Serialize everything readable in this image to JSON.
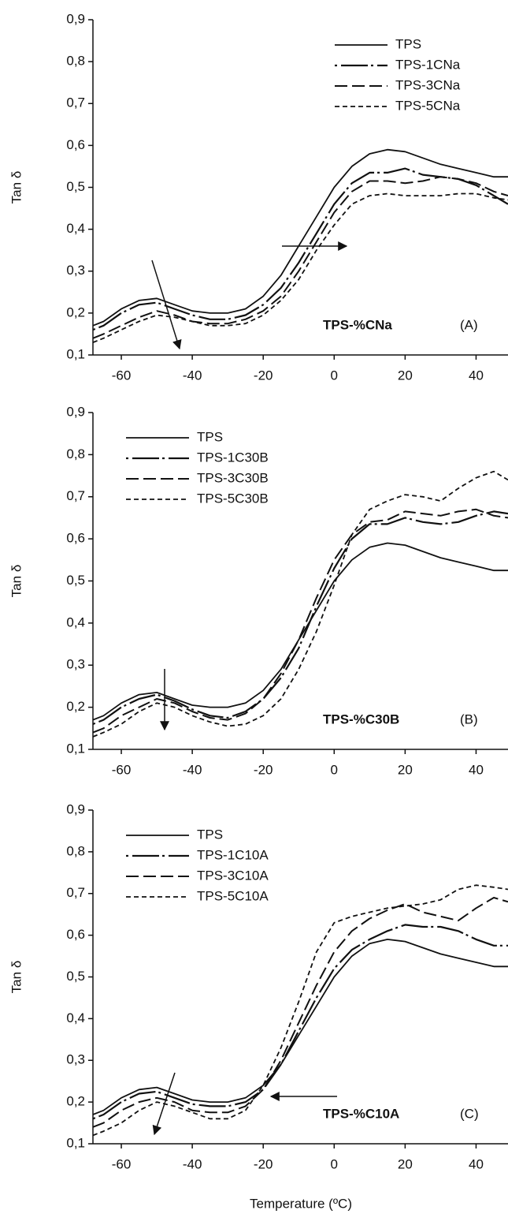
{
  "chart_data": [
    {
      "type": "line",
      "ylabel": "Tan δ",
      "annotation": "TPS-%CNa",
      "panel_label": "(A)",
      "legend_position": "upper right",
      "xlim": [
        -68,
        49
      ],
      "xticks": [
        -60,
        -40,
        -20,
        0,
        20,
        40
      ],
      "ylim": [
        0.1,
        0.9
      ],
      "yticks": [
        {
          "value": 0.1,
          "label": "0,1"
        },
        {
          "value": 0.2,
          "label": "0,2"
        },
        {
          "value": 0.3,
          "label": "0,3"
        },
        {
          "value": 0.4,
          "label": "0,4"
        },
        {
          "value": 0.5,
          "label": "0,5"
        },
        {
          "value": 0.6,
          "label": "0,6"
        },
        {
          "value": 0.7,
          "label": "0,7"
        },
        {
          "value": 0.8,
          "label": "0,8"
        },
        {
          "value": 0.9,
          "label": "0,9"
        }
      ],
      "x": [
        -68,
        -65,
        -60,
        -55,
        -50,
        -45,
        -40,
        -35,
        -30,
        -25,
        -20,
        -15,
        -10,
        -5,
        0,
        5,
        10,
        15,
        20,
        25,
        30,
        35,
        40,
        45,
        49
      ],
      "series": [
        {
          "name": "TPS",
          "color": "#111111",
          "dash": "solid",
          "values": [
            0.17,
            0.18,
            0.21,
            0.23,
            0.235,
            0.22,
            0.205,
            0.2,
            0.2,
            0.21,
            0.24,
            0.29,
            0.36,
            0.43,
            0.5,
            0.55,
            0.58,
            0.59,
            0.585,
            0.57,
            0.555,
            0.545,
            0.535,
            0.525,
            0.525
          ]
        },
        {
          "name": "TPS-1CNa",
          "color": "#111111",
          "dash": "dash-dot",
          "values": [
            0.16,
            0.17,
            0.2,
            0.22,
            0.225,
            0.21,
            0.195,
            0.185,
            0.185,
            0.195,
            0.22,
            0.26,
            0.32,
            0.39,
            0.46,
            0.51,
            0.535,
            0.535,
            0.545,
            0.53,
            0.525,
            0.52,
            0.505,
            0.48,
            0.46
          ]
        },
        {
          "name": "TPS-3CNa",
          "color": "#111111",
          "dash": "dashed",
          "values": [
            0.14,
            0.15,
            0.17,
            0.19,
            0.205,
            0.195,
            0.18,
            0.175,
            0.175,
            0.185,
            0.205,
            0.24,
            0.3,
            0.37,
            0.44,
            0.49,
            0.515,
            0.515,
            0.51,
            0.515,
            0.525,
            0.52,
            0.51,
            0.49,
            0.48
          ]
        },
        {
          "name": "TPS-5CNa",
          "color": "#111111",
          "dash": "short-dash",
          "values": [
            0.13,
            0.14,
            0.16,
            0.18,
            0.195,
            0.19,
            0.18,
            0.17,
            0.17,
            0.175,
            0.195,
            0.23,
            0.28,
            0.35,
            0.41,
            0.46,
            0.48,
            0.485,
            0.48,
            0.48,
            0.48,
            0.485,
            0.485,
            0.475,
            0.47
          ]
        }
      ]
    },
    {
      "type": "line",
      "ylabel": "Tan δ",
      "annotation": "TPS-%C30B",
      "panel_label": "(B)",
      "legend_position": "upper left",
      "xlim": [
        -68,
        49
      ],
      "xticks": [
        -60,
        -40,
        -20,
        0,
        20,
        40
      ],
      "ylim": [
        0.1,
        0.9
      ],
      "yticks": [
        {
          "value": 0.1,
          "label": "0,1"
        },
        {
          "value": 0.2,
          "label": "0,2"
        },
        {
          "value": 0.3,
          "label": "0,3"
        },
        {
          "value": 0.4,
          "label": "0,4"
        },
        {
          "value": 0.5,
          "label": "0,5"
        },
        {
          "value": 0.6,
          "label": "0,6"
        },
        {
          "value": 0.7,
          "label": "0,7"
        },
        {
          "value": 0.8,
          "label": "0,8"
        },
        {
          "value": 0.9,
          "label": "0,9"
        }
      ],
      "x": [
        -68,
        -65,
        -60,
        -55,
        -50,
        -45,
        -40,
        -35,
        -30,
        -25,
        -20,
        -15,
        -10,
        -5,
        0,
        5,
        10,
        15,
        20,
        25,
        30,
        35,
        40,
        45,
        49
      ],
      "series": [
        {
          "name": "TPS",
          "color": "#111111",
          "dash": "solid",
          "values": [
            0.17,
            0.18,
            0.21,
            0.23,
            0.235,
            0.22,
            0.205,
            0.2,
            0.2,
            0.21,
            0.24,
            0.29,
            0.36,
            0.43,
            0.5,
            0.55,
            0.58,
            0.59,
            0.585,
            0.57,
            0.555,
            0.545,
            0.535,
            0.525,
            0.525
          ]
        },
        {
          "name": "TPS-1C30B",
          "color": "#111111",
          "dash": "dash-dot",
          "values": [
            0.16,
            0.17,
            0.2,
            0.22,
            0.23,
            0.215,
            0.195,
            0.18,
            0.175,
            0.19,
            0.22,
            0.27,
            0.34,
            0.44,
            0.53,
            0.6,
            0.635,
            0.635,
            0.65,
            0.64,
            0.635,
            0.64,
            0.655,
            0.665,
            0.66
          ]
        },
        {
          "name": "TPS-3C30B",
          "color": "#111111",
          "dash": "dashed",
          "values": [
            0.14,
            0.15,
            0.18,
            0.2,
            0.22,
            0.21,
            0.19,
            0.175,
            0.17,
            0.185,
            0.22,
            0.28,
            0.36,
            0.46,
            0.55,
            0.61,
            0.64,
            0.645,
            0.665,
            0.66,
            0.655,
            0.665,
            0.67,
            0.655,
            0.65
          ]
        },
        {
          "name": "TPS-5C30B",
          "color": "#111111",
          "dash": "short-dash",
          "values": [
            0.13,
            0.14,
            0.16,
            0.19,
            0.21,
            0.2,
            0.18,
            0.165,
            0.155,
            0.16,
            0.18,
            0.22,
            0.29,
            0.38,
            0.49,
            0.61,
            0.67,
            0.69,
            0.705,
            0.7,
            0.69,
            0.72,
            0.745,
            0.76,
            0.74
          ]
        }
      ]
    },
    {
      "type": "line",
      "ylabel": "Tan δ",
      "xlabel": "Temperature (ºC)",
      "annotation": "TPS-%C10A",
      "panel_label": "(C)",
      "legend_position": "upper left",
      "xlim": [
        -68,
        49
      ],
      "xticks": [
        -60,
        -40,
        -20,
        0,
        20,
        40
      ],
      "ylim": [
        0.1,
        0.9
      ],
      "yticks": [
        {
          "value": 0.1,
          "label": "0,1"
        },
        {
          "value": 0.2,
          "label": "0,2"
        },
        {
          "value": 0.3,
          "label": "0,3"
        },
        {
          "value": 0.4,
          "label": "0,4"
        },
        {
          "value": 0.5,
          "label": "0,5"
        },
        {
          "value": 0.6,
          "label": "0,6"
        },
        {
          "value": 0.7,
          "label": "0,7"
        },
        {
          "value": 0.8,
          "label": "0,8"
        },
        {
          "value": 0.9,
          "label": "0,9"
        }
      ],
      "x": [
        -68,
        -65,
        -60,
        -55,
        -50,
        -45,
        -40,
        -35,
        -30,
        -25,
        -20,
        -15,
        -10,
        -5,
        0,
        5,
        10,
        15,
        20,
        25,
        30,
        35,
        40,
        45,
        49
      ],
      "series": [
        {
          "name": "TPS",
          "color": "#111111",
          "dash": "solid",
          "values": [
            0.17,
            0.18,
            0.21,
            0.23,
            0.235,
            0.22,
            0.205,
            0.2,
            0.2,
            0.21,
            0.24,
            0.29,
            0.36,
            0.43,
            0.5,
            0.55,
            0.58,
            0.59,
            0.585,
            0.57,
            0.555,
            0.545,
            0.535,
            0.525,
            0.525
          ]
        },
        {
          "name": "TPS-1C10A",
          "color": "#111111",
          "dash": "dash-dot",
          "values": [
            0.16,
            0.17,
            0.2,
            0.22,
            0.225,
            0.21,
            0.195,
            0.19,
            0.19,
            0.2,
            0.23,
            0.29,
            0.37,
            0.45,
            0.52,
            0.565,
            0.59,
            0.61,
            0.625,
            0.62,
            0.62,
            0.61,
            0.59,
            0.575,
            0.575
          ]
        },
        {
          "name": "TPS-3C10A",
          "color": "#111111",
          "dash": "dashed",
          "values": [
            0.14,
            0.15,
            0.18,
            0.2,
            0.21,
            0.2,
            0.18,
            0.175,
            0.175,
            0.19,
            0.23,
            0.3,
            0.39,
            0.48,
            0.56,
            0.61,
            0.64,
            0.66,
            0.675,
            0.655,
            0.645,
            0.635,
            0.665,
            0.69,
            0.68
          ]
        },
        {
          "name": "TPS-5C10A",
          "color": "#111111",
          "dash": "short-dash",
          "values": [
            0.12,
            0.13,
            0.15,
            0.18,
            0.2,
            0.19,
            0.175,
            0.16,
            0.16,
            0.18,
            0.24,
            0.33,
            0.44,
            0.56,
            0.63,
            0.645,
            0.655,
            0.665,
            0.67,
            0.675,
            0.685,
            0.71,
            0.72,
            0.715,
            0.71
          ]
        }
      ]
    }
  ]
}
